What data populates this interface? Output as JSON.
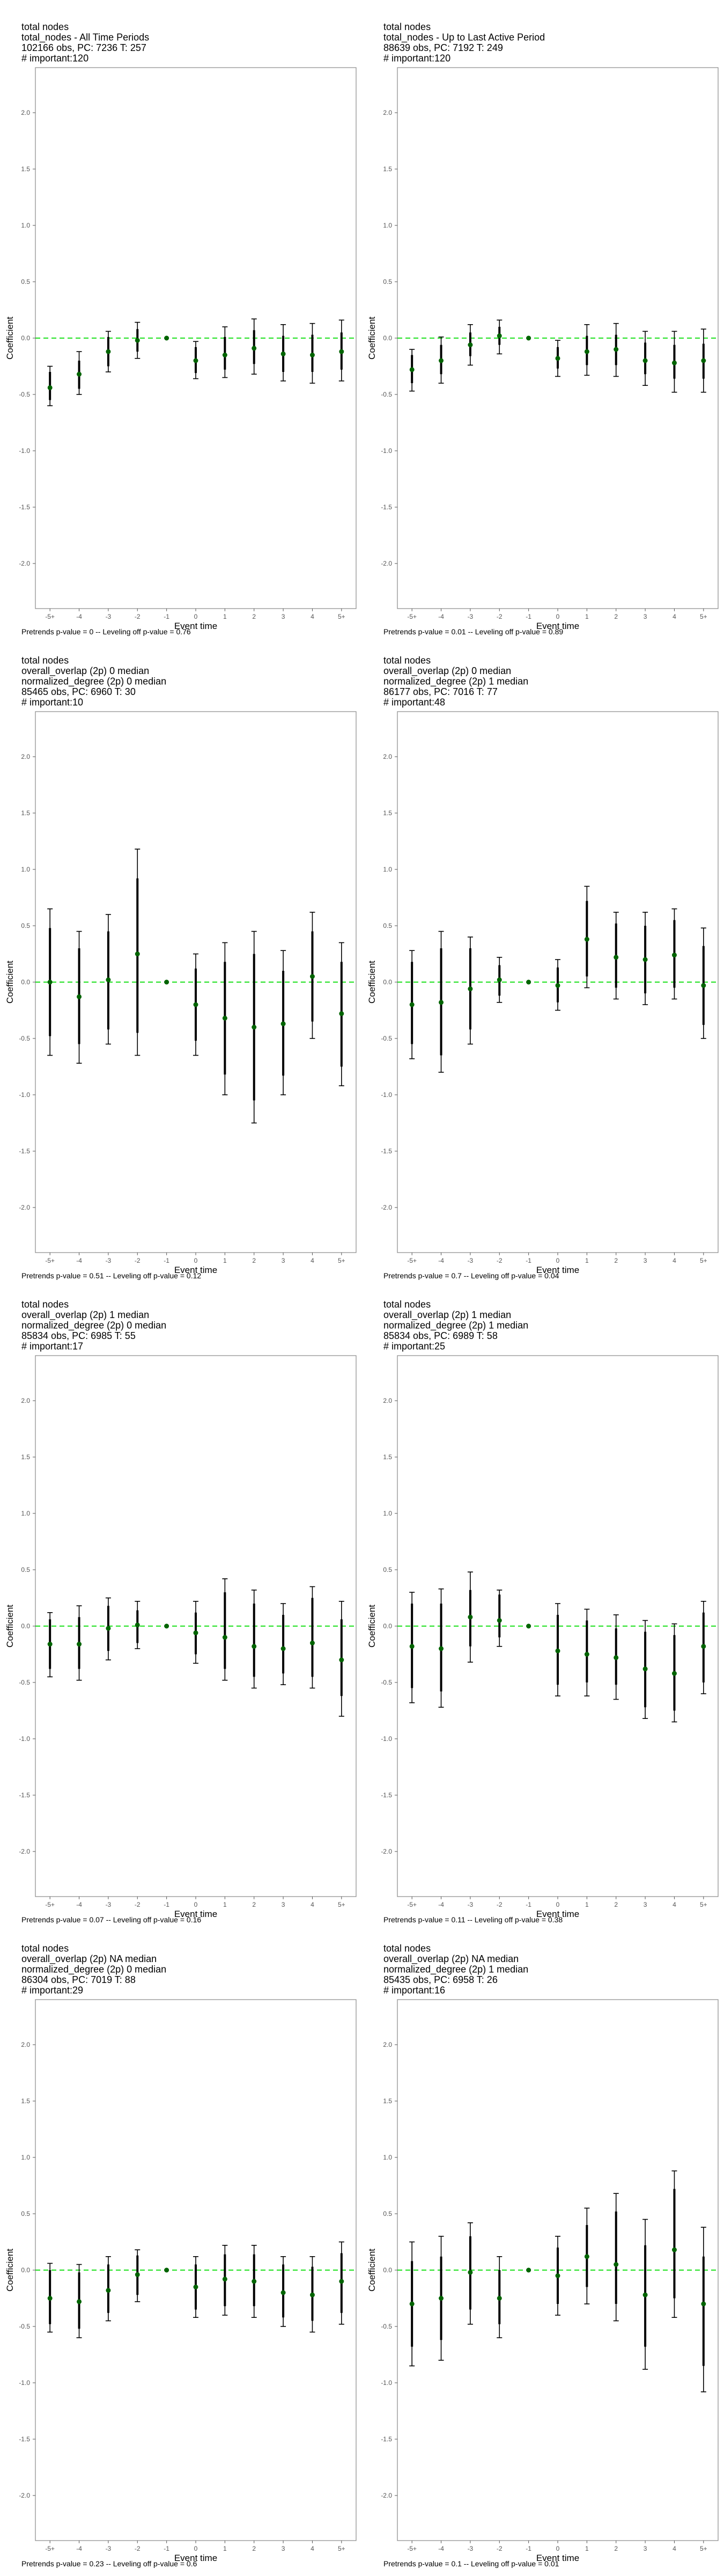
{
  "panels": [
    {
      "title": [
        "total nodes",
        "total_nodes - All Time Periods",
        "102166 obs, PC: 7236 T: 257",
        "# important:120"
      ],
      "footer": "Pretrends p-value = 0 -- Leveling off p-value = 0.76",
      "chart_data": {
        "type": "scatter",
        "x_categories": [
          "-5+",
          "-4",
          "-3",
          "-2",
          "-1",
          "0",
          "1",
          "2",
          "3",
          "4",
          "5+"
        ],
        "ylim": [
          -2.4,
          2.4
        ],
        "y_ticks": [
          "2.0",
          "1.5",
          "1.0",
          "0.5",
          "0.0",
          "-0.5",
          "-1.0",
          "-1.5",
          "-2.0"
        ],
        "xlabel": "Event time",
        "ylabel": "Coefficient",
        "series": [
          {
            "point": [
              -0.44,
              -0.32,
              -0.12,
              -0.02,
              0.0,
              -0.2,
              -0.15,
              -0.09,
              -0.14,
              -0.15,
              -0.12
            ],
            "wide_lo": [
              -0.6,
              -0.5,
              -0.3,
              -0.18,
              0.0,
              -0.36,
              -0.35,
              -0.32,
              -0.38,
              -0.4,
              -0.38
            ],
            "wide_hi": [
              -0.25,
              -0.12,
              0.06,
              0.14,
              0.0,
              -0.03,
              0.1,
              0.17,
              0.12,
              0.13,
              0.16
            ],
            "narrow_lo": [
              -0.55,
              -0.45,
              -0.25,
              -0.12,
              0.0,
              -0.31,
              -0.28,
              -0.23,
              -0.3,
              -0.3,
              -0.28
            ],
            "narrow_hi": [
              -0.3,
              -0.2,
              0.01,
              0.08,
              0.0,
              -0.08,
              0.01,
              0.07,
              0.02,
              0.03,
              0.05
            ]
          }
        ]
      }
    },
    {
      "title": [
        "total nodes",
        "total_nodes - Up to Last Active Period",
        "88639 obs, PC: 7192 T: 249",
        "# important:120"
      ],
      "footer": "Pretrends p-value = 0.01 -- Leveling off p-value = 0.89",
      "chart_data": {
        "type": "scatter",
        "x_categories": [
          "-5+",
          "-4",
          "-3",
          "-2",
          "-1",
          "0",
          "1",
          "2",
          "3",
          "4",
          "5+"
        ],
        "ylim": [
          -2.4,
          2.4
        ],
        "y_ticks": [
          "2.0",
          "1.5",
          "1.0",
          "0.5",
          "0.0",
          "-0.5",
          "-1.0",
          "-1.5",
          "-2.0"
        ],
        "xlabel": "Event time",
        "ylabel": "Coefficient",
        "series": [
          {
            "point": [
              -0.28,
              -0.2,
              -0.06,
              0.02,
              0.0,
              -0.18,
              -0.12,
              -0.1,
              -0.2,
              -0.22,
              -0.2
            ],
            "wide_lo": [
              -0.47,
              -0.4,
              -0.24,
              -0.14,
              0.0,
              -0.34,
              -0.33,
              -0.34,
              -0.42,
              -0.48,
              -0.48
            ],
            "wide_hi": [
              -0.1,
              0.01,
              0.12,
              0.16,
              0.0,
              -0.02,
              0.12,
              0.13,
              0.06,
              0.06,
              0.08
            ],
            "narrow_lo": [
              -0.4,
              -0.32,
              -0.16,
              -0.06,
              0.0,
              -0.27,
              -0.24,
              -0.24,
              -0.32,
              -0.36,
              -0.36
            ],
            "narrow_hi": [
              -0.15,
              -0.06,
              0.05,
              0.1,
              0.0,
              -0.08,
              0.02,
              0.03,
              -0.04,
              -0.06,
              -0.05
            ]
          }
        ]
      }
    },
    {
      "title": [
        "total nodes",
        "overall_overlap (2p) 0 median",
        "normalized_degree (2p) 0 median",
        "85465 obs, PC: 6960 T: 30",
        "# important:10"
      ],
      "footer": "Pretrends p-value = 0.51 -- Leveling off p-value = 0.12",
      "chart_data": {
        "type": "scatter",
        "x_categories": [
          "-5+",
          "-4",
          "-3",
          "-2",
          "-1",
          "0",
          "1",
          "2",
          "3",
          "4",
          "5+"
        ],
        "ylim": [
          -2.4,
          2.4
        ],
        "y_ticks": [
          "2.0",
          "1.5",
          "1.0",
          "0.5",
          "0.0",
          "-0.5",
          "-1.0",
          "-1.5",
          "-2.0"
        ],
        "xlabel": "Event time",
        "ylabel": "Coefficient",
        "series": [
          {
            "point": [
              0.0,
              -0.13,
              0.02,
              0.25,
              0.0,
              -0.2,
              -0.32,
              -0.4,
              -0.37,
              0.05,
              -0.28
            ],
            "wide_lo": [
              -0.65,
              -0.72,
              -0.55,
              -0.65,
              0.0,
              -0.65,
              -1.0,
              -1.25,
              -1.0,
              -0.5,
              -0.92
            ],
            "wide_hi": [
              0.65,
              0.45,
              0.6,
              1.18,
              0.0,
              0.25,
              0.35,
              0.45,
              0.28,
              0.62,
              0.35
            ],
            "narrow_lo": [
              -0.48,
              -0.55,
              -0.42,
              -0.45,
              0.0,
              -0.52,
              -0.82,
              -1.05,
              -0.83,
              -0.35,
              -0.75
            ],
            "narrow_hi": [
              0.48,
              0.3,
              0.45,
              0.92,
              0.0,
              0.12,
              0.18,
              0.25,
              0.1,
              0.45,
              0.18
            ]
          }
        ]
      }
    },
    {
      "title": [
        "total nodes",
        "overall_overlap (2p) 0 median",
        "normalized_degree (2p) 1 median",
        "86177 obs, PC: 7016 T: 77",
        "# important:48"
      ],
      "footer": "Pretrends p-value = 0.7 -- Leveling off p-value = 0.04",
      "chart_data": {
        "type": "scatter",
        "x_categories": [
          "-5+",
          "-4",
          "-3",
          "-2",
          "-1",
          "0",
          "1",
          "2",
          "3",
          "4",
          "5+"
        ],
        "ylim": [
          -2.4,
          2.4
        ],
        "y_ticks": [
          "2.0",
          "1.5",
          "1.0",
          "0.5",
          "0.0",
          "-0.5",
          "-1.0",
          "-1.5",
          "-2.0"
        ],
        "xlabel": "Event time",
        "ylabel": "Coefficient",
        "series": [
          {
            "point": [
              -0.2,
              -0.18,
              -0.06,
              0.02,
              0.0,
              -0.03,
              0.38,
              0.22,
              0.2,
              0.24,
              -0.03
            ],
            "wide_lo": [
              -0.68,
              -0.8,
              -0.55,
              -0.18,
              0.0,
              -0.25,
              -0.05,
              -0.15,
              -0.2,
              -0.15,
              -0.5
            ],
            "wide_hi": [
              0.28,
              0.45,
              0.4,
              0.22,
              0.0,
              0.2,
              0.85,
              0.62,
              0.62,
              0.65,
              0.48
            ],
            "narrow_lo": [
              -0.55,
              -0.65,
              -0.42,
              -0.12,
              0.0,
              -0.18,
              0.05,
              -0.05,
              -0.1,
              -0.05,
              -0.38
            ],
            "narrow_hi": [
              0.18,
              0.3,
              0.3,
              0.15,
              0.0,
              0.13,
              0.72,
              0.52,
              0.5,
              0.55,
              0.32
            ]
          }
        ]
      }
    },
    {
      "title": [
        "total nodes",
        "overall_overlap (2p) 1 median",
        "normalized_degree (2p) 0 median",
        "85834 obs, PC: 6985 T: 55",
        "# important:17"
      ],
      "footer": "Pretrends p-value = 0.07 -- Leveling off p-value = 0.16",
      "chart_data": {
        "type": "scatter",
        "x_categories": [
          "-5+",
          "-4",
          "-3",
          "-2",
          "-1",
          "0",
          "1",
          "2",
          "3",
          "4",
          "5+"
        ],
        "ylim": [
          -2.4,
          2.4
        ],
        "y_ticks": [
          "2.0",
          "1.5",
          "1.0",
          "0.5",
          "0.0",
          "-0.5",
          "-1.0",
          "-1.5",
          "-2.0"
        ],
        "xlabel": "Event time",
        "ylabel": "Coefficient",
        "series": [
          {
            "point": [
              -0.16,
              -0.16,
              -0.02,
              0.01,
              0.0,
              -0.06,
              -0.1,
              -0.18,
              -0.2,
              -0.15,
              -0.3
            ],
            "wide_lo": [
              -0.45,
              -0.48,
              -0.3,
              -0.2,
              0.0,
              -0.33,
              -0.48,
              -0.55,
              -0.52,
              -0.55,
              -0.8
            ],
            "wide_hi": [
              0.12,
              0.18,
              0.25,
              0.22,
              0.0,
              0.22,
              0.42,
              0.32,
              0.2,
              0.35,
              0.22
            ],
            "narrow_lo": [
              -0.38,
              -0.38,
              -0.22,
              -0.15,
              0.0,
              -0.25,
              -0.38,
              -0.45,
              -0.42,
              -0.45,
              -0.62
            ],
            "narrow_hi": [
              0.06,
              0.08,
              0.18,
              0.14,
              0.0,
              0.12,
              0.3,
              0.2,
              0.1,
              0.25,
              0.06
            ]
          }
        ]
      }
    },
    {
      "title": [
        "total nodes",
        "overall_overlap (2p) 1 median",
        "normalized_degree (2p) 1 median",
        "85834 obs, PC: 6989 T: 58",
        "# important:25"
      ],
      "footer": "Pretrends p-value = 0.11 -- Leveling off p-value = 0.38",
      "chart_data": {
        "type": "scatter",
        "x_categories": [
          "-5+",
          "-4",
          "-3",
          "-2",
          "-1",
          "0",
          "1",
          "2",
          "3",
          "4",
          "5+"
        ],
        "ylim": [
          -2.4,
          2.4
        ],
        "y_ticks": [
          "2.0",
          "1.5",
          "1.0",
          "0.5",
          "0.0",
          "-0.5",
          "-1.0",
          "-1.5",
          "-2.0"
        ],
        "xlabel": "Event time",
        "ylabel": "Coefficient",
        "series": [
          {
            "point": [
              -0.18,
              -0.2,
              0.08,
              0.05,
              0.0,
              -0.22,
              -0.25,
              -0.28,
              -0.38,
              -0.42,
              -0.18
            ],
            "wide_lo": [
              -0.68,
              -0.72,
              -0.32,
              -0.18,
              0.0,
              -0.62,
              -0.62,
              -0.65,
              -0.82,
              -0.85,
              -0.6
            ],
            "wide_hi": [
              0.3,
              0.33,
              0.48,
              0.32,
              0.0,
              0.2,
              0.15,
              0.1,
              0.05,
              0.02,
              0.22
            ],
            "narrow_lo": [
              -0.55,
              -0.58,
              -0.18,
              -0.1,
              0.0,
              -0.52,
              -0.5,
              -0.52,
              -0.72,
              -0.75,
              -0.5
            ],
            "narrow_hi": [
              0.2,
              0.2,
              0.32,
              0.28,
              0.0,
              0.1,
              0.05,
              -0.02,
              -0.05,
              -0.08,
              0.12
            ]
          }
        ]
      }
    },
    {
      "title": [
        "total nodes",
        "overall_overlap (2p) NA median",
        "normalized_degree (2p) 0 median",
        "86304 obs, PC: 7019 T: 88",
        "# important:29"
      ],
      "footer": "Pretrends p-value = 0.23 -- Leveling off p-value = 0.6",
      "chart_data": {
        "type": "scatter",
        "x_categories": [
          "-5+",
          "-4",
          "-3",
          "-2",
          "-1",
          "0",
          "1",
          "2",
          "3",
          "4",
          "5+"
        ],
        "ylim": [
          -2.4,
          2.4
        ],
        "y_ticks": [
          "2.0",
          "1.5",
          "1.0",
          "0.5",
          "0.0",
          "-0.5",
          "-1.0",
          "-1.5",
          "-2.0"
        ],
        "xlabel": "Event time",
        "ylabel": "Coefficient",
        "series": [
          {
            "point": [
              -0.25,
              -0.28,
              -0.18,
              -0.04,
              0.0,
              -0.15,
              -0.08,
              -0.1,
              -0.2,
              -0.22,
              -0.1
            ],
            "wide_lo": [
              -0.55,
              -0.6,
              -0.45,
              -0.28,
              0.0,
              -0.42,
              -0.4,
              -0.42,
              -0.5,
              -0.55,
              -0.48
            ],
            "wide_hi": [
              0.06,
              0.05,
              0.12,
              0.18,
              0.0,
              0.12,
              0.22,
              0.22,
              0.12,
              0.12,
              0.25
            ],
            "narrow_lo": [
              -0.48,
              -0.52,
              -0.38,
              -0.22,
              0.0,
              -0.35,
              -0.32,
              -0.32,
              -0.42,
              -0.45,
              -0.38
            ],
            "narrow_hi": [
              0.0,
              -0.02,
              0.05,
              0.13,
              0.0,
              0.05,
              0.14,
              0.14,
              0.05,
              0.03,
              0.15
            ]
          }
        ]
      }
    },
    {
      "title": [
        "total nodes",
        "overall_overlap (2p) NA median",
        "normalized_degree (2p) 1 median",
        "85435 obs, PC: 6958 T: 26",
        "# important:16"
      ],
      "footer": "Pretrends p-value = 0.1 -- Leveling off p-value = 0.01",
      "chart_data": {
        "type": "scatter",
        "x_categories": [
          "-5+",
          "-4",
          "-3",
          "-2",
          "-1",
          "0",
          "1",
          "2",
          "3",
          "4",
          "5+"
        ],
        "ylim": [
          -2.4,
          2.4
        ],
        "y_ticks": [
          "2.0",
          "1.5",
          "1.0",
          "0.5",
          "0.0",
          "-0.5",
          "-1.0",
          "-1.5",
          "-2.0"
        ],
        "xlabel": "Event time",
        "ylabel": "Coefficient",
        "series": [
          {
            "point": [
              -0.3,
              -0.25,
              -0.02,
              -0.25,
              0.0,
              -0.05,
              0.12,
              0.05,
              -0.22,
              0.18,
              -0.3
            ],
            "wide_lo": [
              -0.85,
              -0.8,
              -0.48,
              -0.6,
              0.0,
              -0.4,
              -0.3,
              -0.45,
              -0.88,
              -0.42,
              -1.08
            ],
            "wide_hi": [
              0.25,
              0.3,
              0.42,
              0.12,
              0.0,
              0.3,
              0.55,
              0.68,
              0.45,
              0.88,
              0.38
            ],
            "narrow_lo": [
              -0.68,
              -0.62,
              -0.35,
              -0.48,
              0.0,
              -0.3,
              -0.15,
              -0.3,
              -0.68,
              -0.25,
              -0.85
            ],
            "narrow_hi": [
              0.08,
              0.12,
              0.3,
              0.0,
              0.0,
              0.2,
              0.4,
              0.52,
              0.22,
              0.72,
              0.12
            ]
          }
        ]
      }
    }
  ],
  "colors": {
    "point": "#006400",
    "ci": "#000000",
    "zero_line": "#00dd00",
    "frame": "#888888"
  }
}
